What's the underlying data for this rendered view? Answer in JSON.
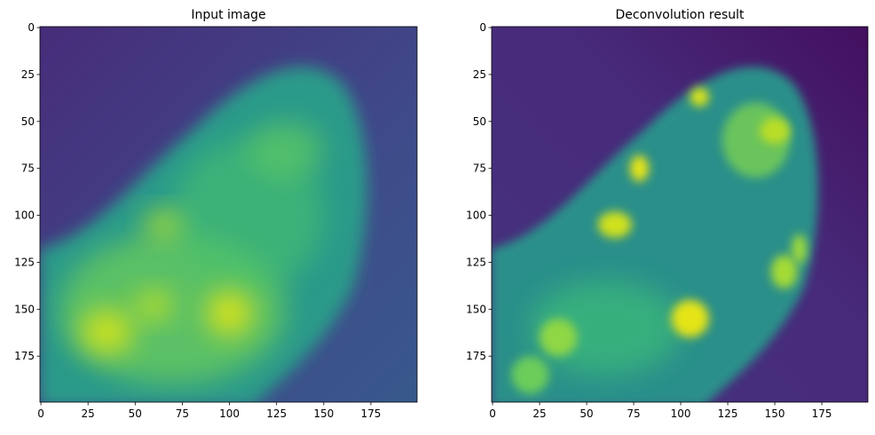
{
  "chart_data": [
    {
      "type": "image",
      "title": "Input image",
      "xlim": [
        -0.5,
        199.5
      ],
      "ylim": [
        199.5,
        -0.5
      ],
      "xticks": [
        0,
        25,
        50,
        75,
        100,
        125,
        150,
        175
      ],
      "yticks": [
        0,
        25,
        50,
        75,
        100,
        125,
        150,
        175
      ]
    },
    {
      "type": "image",
      "title": "Deconvolution result",
      "xlim": [
        -0.5,
        199.5
      ],
      "ylim": [
        199.5,
        -0.5
      ],
      "xticks": [
        0,
        25,
        50,
        75,
        100,
        125,
        150,
        175
      ],
      "yticks": [
        0,
        25,
        50,
        75,
        100,
        125,
        150,
        175
      ]
    }
  ]
}
